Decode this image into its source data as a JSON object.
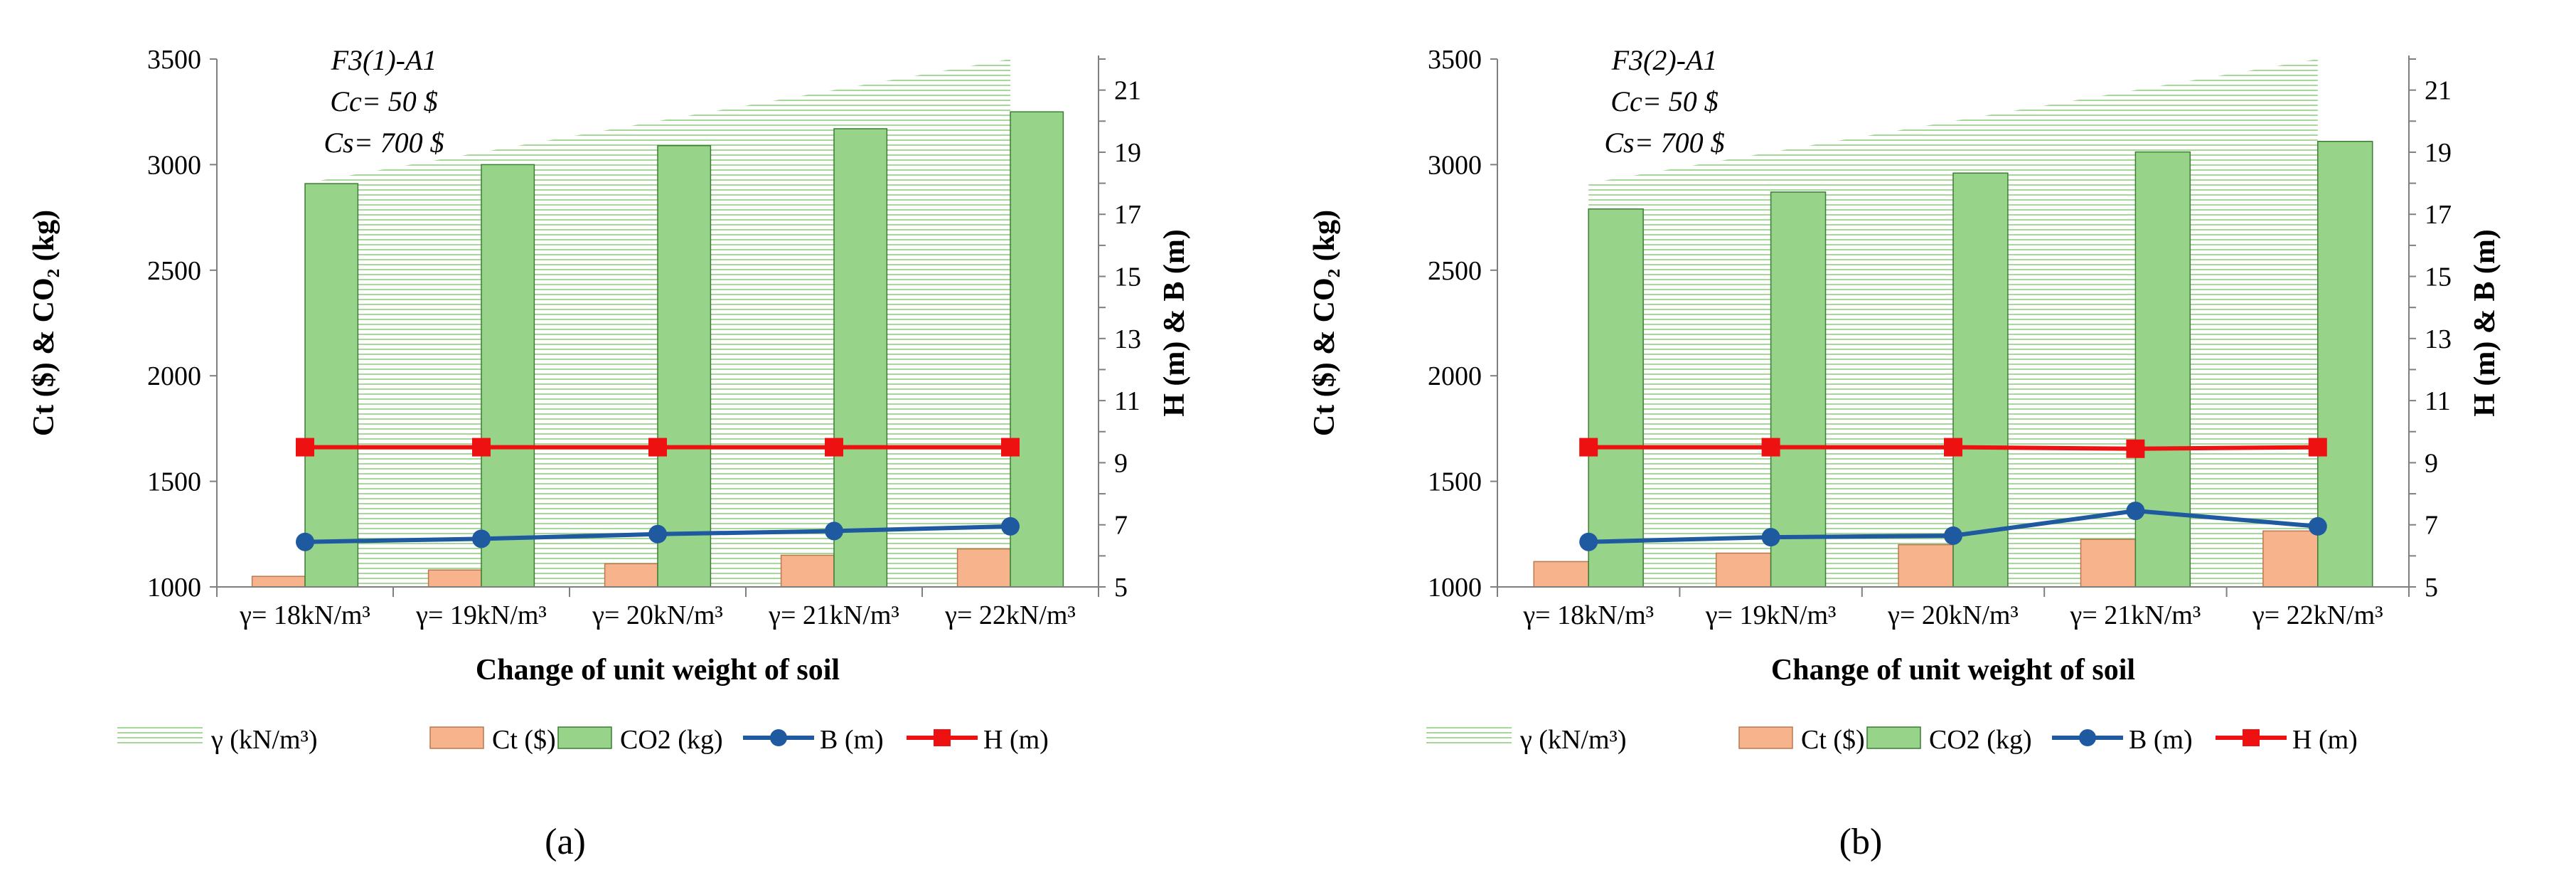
{
  "chart_data": [
    {
      "type": "bar",
      "panel_label": "(a)",
      "annotation": [
        "F3(1)-A1",
        "Cc= 50 $",
        "Cs= 700 $"
      ],
      "categories": [
        "γ= 18kN/m³",
        "γ= 19kN/m³",
        "γ= 20kN/m³",
        "γ= 21kN/m³",
        "γ= 22kN/m³"
      ],
      "xlabel": "Change of unit weight of soil",
      "ylabel_left": "Ct ($) & CO₂ (kg)",
      "ylabel_right": "H (m) & B (m)",
      "ylim_left": [
        1000,
        3500
      ],
      "yticks_left": [
        1000,
        1500,
        2000,
        2500,
        3000,
        3500
      ],
      "ylim_right": [
        5,
        22
      ],
      "yticks_right": [
        5,
        7,
        9,
        11,
        13,
        15,
        17,
        19,
        21
      ],
      "series": [
        {
          "name": "γ (kN/m³)",
          "kind": "area",
          "axis": "right",
          "values": [
            18,
            19,
            20,
            21,
            22
          ]
        },
        {
          "name": "Ct ($)",
          "kind": "bar",
          "axis": "left",
          "values": [
            1050,
            1080,
            1110,
            1150,
            1180
          ]
        },
        {
          "name": "CO2 (kg)",
          "kind": "bar",
          "axis": "left",
          "values": [
            2910,
            3000,
            3090,
            3170,
            3250
          ]
        },
        {
          "name": "B (m)",
          "kind": "line",
          "axis": "right",
          "values": [
            6.45,
            6.55,
            6.7,
            6.8,
            6.95
          ]
        },
        {
          "name": "H  (m)",
          "kind": "line",
          "axis": "right",
          "values": [
            9.5,
            9.5,
            9.5,
            9.5,
            9.5
          ]
        }
      ]
    },
    {
      "type": "bar",
      "panel_label": "(b)",
      "annotation": [
        "F3(2)-A1",
        "Cc= 50 $",
        "Cs= 700 $"
      ],
      "categories": [
        "γ= 18kN/m³",
        "γ= 19kN/m³",
        "γ= 20kN/m³",
        "γ= 21kN/m³",
        "γ= 22kN/m³"
      ],
      "xlabel": "Change of unit weight of soil",
      "ylabel_left": "Ct ($) & CO₂ (kg)",
      "ylabel_right": "H (m) & B (m)",
      "ylim_left": [
        1000,
        3500
      ],
      "yticks_left": [
        1000,
        1500,
        2000,
        2500,
        3000,
        3500
      ],
      "ylim_right": [
        5,
        22
      ],
      "yticks_right": [
        5,
        7,
        9,
        11,
        13,
        15,
        17,
        19,
        21
      ],
      "series": [
        {
          "name": "γ (kN/m³)",
          "kind": "area",
          "axis": "right",
          "values": [
            18,
            19,
            20,
            21,
            22
          ]
        },
        {
          "name": "Ct ($)",
          "kind": "bar",
          "axis": "left",
          "values": [
            1120,
            1160,
            1200,
            1225,
            1265
          ]
        },
        {
          "name": "CO2 (kg)",
          "kind": "bar",
          "axis": "left",
          "values": [
            2790,
            2870,
            2960,
            3060,
            3110
          ]
        },
        {
          "name": "B (m)",
          "kind": "line",
          "axis": "right",
          "values": [
            6.45,
            6.6,
            6.65,
            7.45,
            6.95
          ]
        },
        {
          "name": "H  (m)",
          "kind": "line",
          "axis": "right",
          "values": [
            9.5,
            9.5,
            9.5,
            9.45,
            9.5
          ]
        }
      ]
    }
  ],
  "colors": {
    "ct_fill": "#f7b38b",
    "ct_stroke": "#b9784f",
    "co2_fill": "#97d48a",
    "co2_stroke": "#3a7d33",
    "area_hatch": "#8fcf80",
    "b_line": "#1f5aa0",
    "h_line": "#ee1111",
    "axis": "#7f7f7f",
    "text": "#000000"
  }
}
